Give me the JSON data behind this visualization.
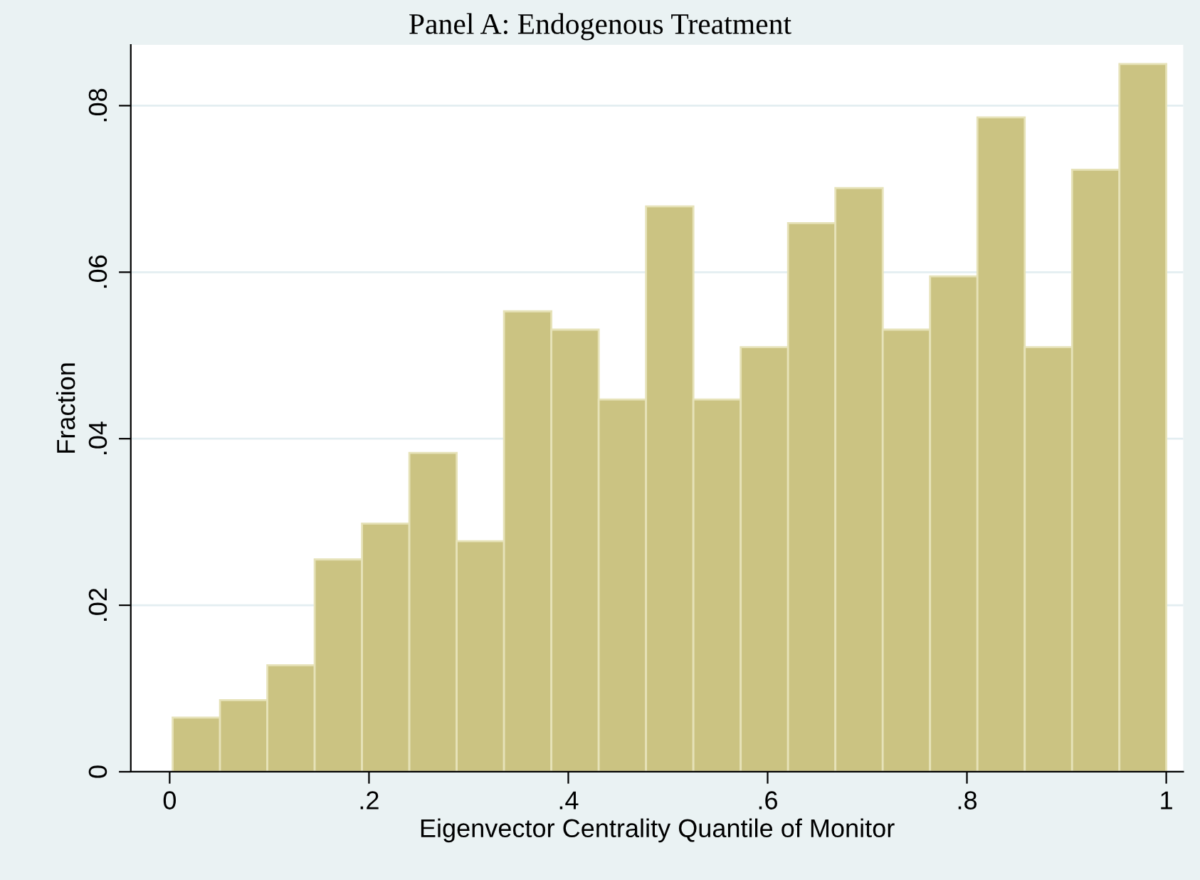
{
  "chart_data": {
    "type": "histogram",
    "title": "Panel A: Endogenous Treatment",
    "xlabel": "Eigenvector Centrality Quantile of Monitor",
    "ylabel": "Fraction",
    "bins": [
      0.003,
      0.0505,
      0.098,
      0.1455,
      0.193,
      0.2405,
      0.288,
      0.3355,
      0.383,
      0.4305,
      0.478,
      0.5255,
      0.573,
      0.6205,
      0.668,
      0.7155,
      0.763,
      0.8105,
      0.858,
      0.9055,
      0.953,
      1.0
    ],
    "values": [
      0.0065,
      0.0086,
      0.0128,
      0.0255,
      0.0298,
      0.0383,
      0.0277,
      0.0553,
      0.0531,
      0.0447,
      0.0679,
      0.0447,
      0.051,
      0.0659,
      0.0701,
      0.0531,
      0.0595,
      0.0786,
      0.051,
      0.0723,
      0.085
    ],
    "color": "#cbc382",
    "xlim": [
      -0.039,
      1.017
    ],
    "ylim": [
      0,
      0.0873
    ],
    "xticks": [
      0,
      {
        "value": 0.2,
        "label": ".2"
      },
      {
        "value": 0.4,
        "label": ".4"
      },
      {
        "value": 0.6,
        "label": ".6"
      },
      {
        "value": 0.8,
        "label": ".8"
      },
      1
    ],
    "yticks": [
      0,
      {
        "value": 0.02,
        "label": ".02"
      },
      {
        "value": 0.04,
        "label": ".04"
      },
      {
        "value": 0.06,
        "label": ".06"
      },
      {
        "value": 0.08,
        "label": ".08"
      }
    ],
    "grid": "y"
  }
}
